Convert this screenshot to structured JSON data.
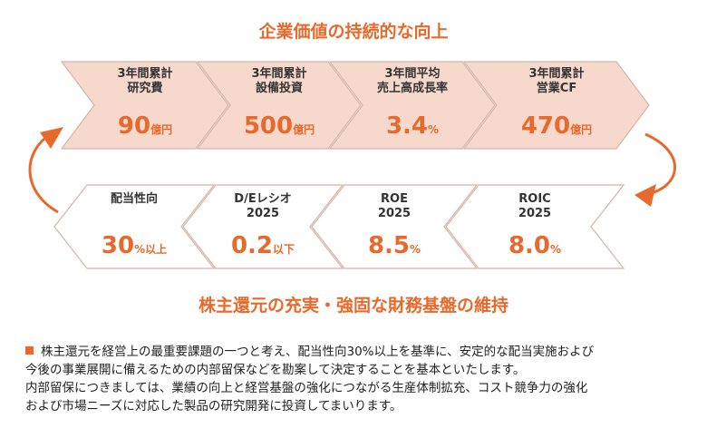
{
  "header": {
    "title": "企業価値の持続的な向上"
  },
  "top_row": [
    {
      "label": "3年間累計\n研究費",
      "value": "90",
      "unit": "億円"
    },
    {
      "label": "3年間累計\n設備投資",
      "value": "500",
      "unit": "億円"
    },
    {
      "label": "3年間平均\n売上高成長率",
      "value": "3.4",
      "unit": "%"
    },
    {
      "label": "3年間累計\n営業CF",
      "value": "470",
      "unit": "億円"
    }
  ],
  "bottom_row": [
    {
      "label": "配当性向",
      "value": "30",
      "unit": "%以上"
    },
    {
      "label": "D/Eレシオ\n2025",
      "value": "0.2",
      "unit": "以下"
    },
    {
      "label": "ROE\n2025",
      "value": "8.5",
      "unit": "%"
    },
    {
      "label": "ROIC\n2025",
      "value": "8.0",
      "unit": "%"
    }
  ],
  "footer_title": "株主還元の充実・強固な財務基盤の維持",
  "policy": {
    "line1": "株主還元を経営上の最重要課題の一つと考え、配当性向30%以上を基準に、安定的な配当実施および",
    "line2": "今後の事業展開に備えるための内部留保などを勘案して決定することを基本といたします。",
    "line3": "内部留保につきましては、業績の向上と経営基盤の強化につながる生産体制拡充、コスト競争力の強化",
    "line4": "および市場ニーズに対応した製品の研究開発に投資してまいります。"
  },
  "colors": {
    "accent": "#e8692c",
    "top_fill": "#f6d9cc",
    "bottom_fill": "#ffffff",
    "stroke": "#d4b5a8"
  }
}
